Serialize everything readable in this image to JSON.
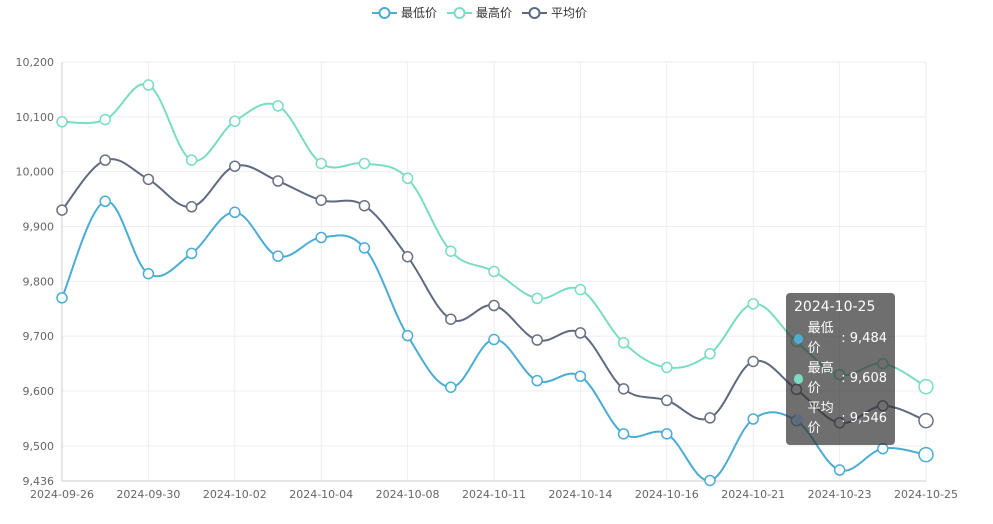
{
  "legend": {
    "items": [
      {
        "label": "最低价",
        "color": "#4bacd4"
      },
      {
        "label": "最高价",
        "color": "#7adcc4"
      },
      {
        "label": "平均价",
        "color": "#5e6a82"
      }
    ]
  },
  "tooltip": {
    "title": "2024-10-25",
    "rows": [
      {
        "name": "最低价",
        "value": "9,484",
        "color": "#4bacd4"
      },
      {
        "name": "最高价",
        "value": "9,608",
        "color": "#7adcc4"
      },
      {
        "name": "平均价",
        "value": "9,546",
        "color": "#5e6a82"
      }
    ]
  },
  "chart_data": {
    "type": "line",
    "ylim": [
      9436,
      10200
    ],
    "y_ticks": [
      "9,436",
      "9,500",
      "9,600",
      "9,700",
      "9,800",
      "9,900",
      "10,000",
      "10,100",
      "10,200"
    ],
    "y_tick_values": [
      9436,
      9500,
      9600,
      9700,
      9800,
      9900,
      10000,
      10100,
      10200
    ],
    "x_tick_labels": [
      "2024-09-26",
      "2024-09-30",
      "2024-10-02",
      "2024-10-04",
      "2024-10-08",
      "2024-10-11",
      "2024-10-14",
      "2024-10-16",
      "2024-10-21",
      "2024-10-23",
      "2024-10-25"
    ],
    "x_tick_positions": [
      0,
      2,
      4,
      6,
      8,
      10,
      12,
      14,
      16,
      18,
      20
    ],
    "point_count": 21,
    "grid": true,
    "legend_position": "top-center",
    "series": [
      {
        "name": "最低价",
        "color": "#4bacd4",
        "values": [
          9770,
          9946,
          9814,
          9851,
          9926,
          9846,
          9880,
          9861,
          9701,
          9607,
          9694,
          9619,
          9627,
          9522,
          9522,
          9437,
          9549,
          9546,
          9456,
          9495,
          9484
        ]
      },
      {
        "name": "最高价",
        "color": "#7adcc4",
        "values": [
          10091,
          10095,
          10158,
          10021,
          10092,
          10120,
          10015,
          10015,
          9988,
          9855,
          9818,
          9769,
          9785,
          9688,
          9643,
          9668,
          9759,
          9690,
          9630,
          9650,
          9608
        ]
      },
      {
        "name": "平均价",
        "color": "#5e6a82",
        "values": [
          9930,
          10021,
          9986,
          9936,
          10010,
          9983,
          9948,
          9938,
          9845,
          9731,
          9756,
          9693,
          9706,
          9604,
          9583,
          9551,
          9654,
          9603,
          9542,
          9573,
          9546
        ]
      }
    ]
  }
}
